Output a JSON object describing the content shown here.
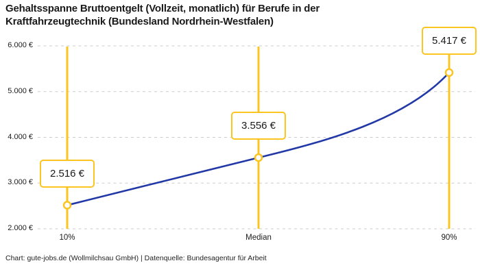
{
  "title_line1": "Gehaltsspanne Bruttoentgelt (Vollzeit, monatlich) für Berufe in der",
  "title_line2": "Kraftfahrzeugtechnik (Bundesland Nordrhein-Westfalen)",
  "footer": "Chart: gute-jobs.de (Wollmilchsau GmbH) | Datenquelle: Bundesagentur für Arbeit",
  "colors": {
    "accent_yellow": "#fcc41f",
    "line_blue": "#2138a6",
    "grid_gray": "#cbcbcb",
    "text_dark": "#1a1a1a",
    "background": "#ffffff"
  },
  "chart_data": {
    "type": "line",
    "title": "Gehaltsspanne Bruttoentgelt (Vollzeit, monatlich) für Berufe in der Kraftfahrzeugtechnik (Bundesland Nordrhein-Westfalen)",
    "categories": [
      "10%",
      "Median",
      "90%"
    ],
    "values": [
      2516,
      3556,
      5417
    ],
    "value_labels": [
      "2.516 €",
      "3.556 €",
      "5.417 €"
    ],
    "y_ticks": [
      {
        "value": 6000,
        "label": "6.000 €"
      },
      {
        "value": 5000,
        "label": "5.000 €"
      },
      {
        "value": 4000,
        "label": "4.000 €"
      },
      {
        "value": 3000,
        "label": "3.000 €"
      },
      {
        "value": 2000,
        "label": "2.000 €"
      }
    ],
    "ylim": [
      2000,
      6000
    ],
    "xlabel": "",
    "ylabel": "",
    "grid": "horizontal-dashed",
    "legend": "none",
    "annotations": "each percentile marked with vertical yellow line, open circle marker and boxed value label",
    "source": "Chart: gute-jobs.de (Wollmilchsau GmbH) | Datenquelle: Bundesagentur für Arbeit"
  }
}
